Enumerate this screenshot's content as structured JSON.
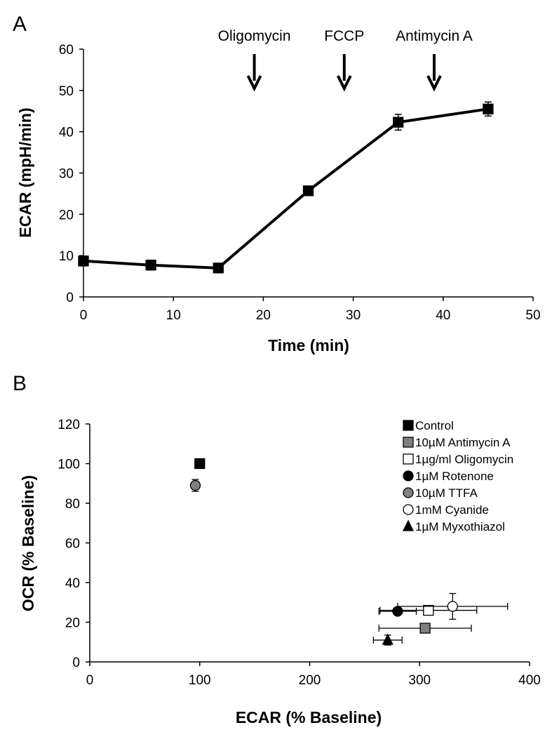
{
  "chart_data": [
    {
      "panel_label": "A",
      "type": "line",
      "xlabel": "Time (min)",
      "ylabel": "ECAR (mpH/min)",
      "xlim": [
        0,
        50
      ],
      "ylim": [
        0,
        60
      ],
      "xticks": [
        "0",
        "10",
        "20",
        "30",
        "40",
        "50"
      ],
      "yticks": [
        "0",
        "10",
        "20",
        "30",
        "40",
        "50",
        "60"
      ],
      "grid": false,
      "series": [
        {
          "marker": "square",
          "color": "#000000",
          "x": [
            0,
            7.5,
            15,
            25,
            35,
            45
          ],
          "y": [
            8.7,
            7.7,
            7.0,
            25.7,
            42.3,
            45.5
          ],
          "err": [
            1.2,
            1.2,
            0.8,
            0.8,
            1.9,
            1.7
          ]
        }
      ],
      "annotations": [
        {
          "text": "Oligomycin",
          "x": 19,
          "arrow": "down"
        },
        {
          "text": "FCCP",
          "x": 29,
          "arrow": "down"
        },
        {
          "text": "Antimycin A",
          "x": 39,
          "arrow": "down"
        }
      ]
    },
    {
      "panel_label": "B",
      "type": "scatter",
      "xlabel": "ECAR (% Baseline)",
      "ylabel": "OCR (% Baseline)",
      "xlim": [
        0,
        400
      ],
      "ylim": [
        0,
        120
      ],
      "xticks": [
        "0",
        "100",
        "200",
        "300",
        "400"
      ],
      "yticks": [
        "0",
        "20",
        "40",
        "60",
        "80",
        "100",
        "120"
      ],
      "grid": false,
      "legend_position": "top-right",
      "series": [
        {
          "name": "Control",
          "marker": "square",
          "fill": "#000000",
          "x": 100,
          "y": 100,
          "xerr": 0,
          "yerr": 0
        },
        {
          "name": "10µM Antimycin A",
          "marker": "square",
          "fill": "#808080",
          "x": 305,
          "y": 17,
          "xerr": 42,
          "yerr": 0
        },
        {
          "name": "1µg/ml Oligomycin",
          "marker": "square",
          "fill": "#ffffff",
          "x": 308,
          "y": 26,
          "xerr": 44,
          "yerr": 0
        },
        {
          "name": "1µM Rotenone",
          "marker": "circle",
          "fill": "#000000",
          "x": 280,
          "y": 25.5,
          "xerr": 17,
          "yerr": 0
        },
        {
          "name": "10µM TTFA",
          "marker": "circle",
          "fill": "#808080",
          "x": 96,
          "y": 89,
          "xerr": 0,
          "yerr": 3
        },
        {
          "name": "1mM Cyanide",
          "marker": "circle",
          "fill": "#ffffff",
          "x": 330,
          "y": 28,
          "xerr": 50,
          "yerr": 6.5
        },
        {
          "name": "1µM Myxothiazol",
          "marker": "triangle",
          "fill": "#000000",
          "x": 271,
          "y": 11,
          "xerr": 13,
          "yerr": 2.5
        }
      ]
    }
  ]
}
